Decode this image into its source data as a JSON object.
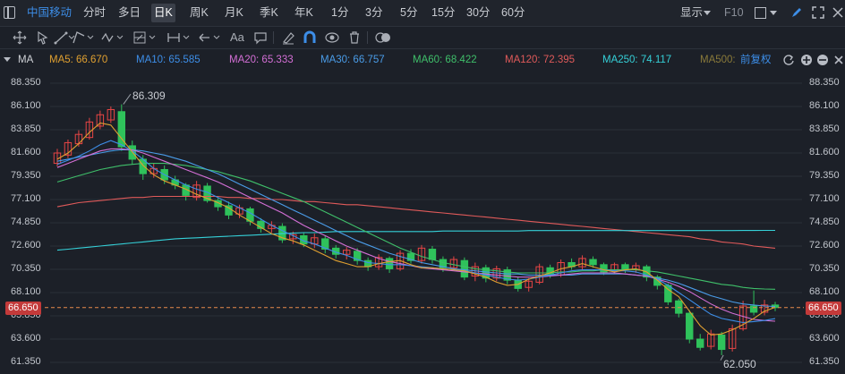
{
  "toolbar": {
    "stock_name": "中国移动",
    "periods": [
      "分时",
      "多日",
      "日K",
      "周K",
      "月K",
      "季K",
      "年K",
      "1分",
      "3分",
      "5分",
      "15分",
      "30分",
      "60分"
    ],
    "active_period": "日K",
    "display_label": "显示",
    "f10_label": "F10"
  },
  "drawing_tools": {
    "text_tool_label": "Aa"
  },
  "ma_row": {
    "indicator": "MA",
    "items": [
      {
        "label": "MA5: 66.670",
        "color": "#e0a030"
      },
      {
        "label": "MA10: 65.585",
        "color": "#3d8ee8"
      },
      {
        "label": "MA20: 65.333",
        "color": "#d46fd6"
      },
      {
        "label": "MA30: 66.757",
        "color": "#4a9ce8"
      },
      {
        "label": "MA60: 68.422",
        "color": "#3fbf6a"
      },
      {
        "label": "MA120: 72.395",
        "color": "#e05a5a"
      },
      {
        "label": "MA250: 74.117",
        "color": "#35d0d8"
      },
      {
        "label": "MA500:",
        "color": "#8a7a3a"
      }
    ],
    "adjust_label": "前复权"
  },
  "chart_data": {
    "type": "candlestick",
    "y_ticks": [
      "88.350",
      "86.100",
      "83.850",
      "81.600",
      "79.350",
      "77.100",
      "74.850",
      "72.600",
      "70.350",
      "68.100",
      "65.850",
      "63.600",
      "61.350"
    ],
    "ylim": [
      61.35,
      88.35
    ],
    "current_price": "66.650",
    "high_label": "86.309",
    "low_label": "62.050",
    "ma5": [
      81.0,
      81.6,
      82.5,
      83.6,
      84.5,
      84.3,
      83.0,
      81.7,
      80.4,
      79.5,
      78.9,
      78.5,
      78.1,
      77.6,
      77.2,
      76.8,
      76.3,
      75.6,
      75.0,
      74.4,
      73.8,
      73.4,
      73.1,
      72.7,
      72.2,
      71.7,
      71.2,
      70.9,
      70.6,
      70.6,
      70.9,
      71.1,
      71.2,
      70.8,
      70.5,
      70.5,
      70.4,
      70.3,
      70.2,
      69.9,
      69.6,
      69.1,
      68.8,
      68.9,
      69.4,
      69.7,
      70.0,
      70.4,
      70.6,
      70.9,
      70.6,
      70.3,
      70.1,
      70.3,
      70.4,
      70.1,
      69.3,
      68.4,
      67.7,
      66.3,
      64.9,
      64.0,
      64.1,
      64.5,
      65.0,
      65.6,
      66.3,
      66.67
    ],
    "ma10": [
      80.5,
      80.9,
      81.3,
      81.8,
      82.4,
      82.8,
      82.4,
      81.8,
      81.0,
      80.1,
      79.5,
      79.0,
      78.5,
      78.1,
      77.8,
      77.3,
      76.8,
      76.3,
      75.8,
      75.2,
      74.6,
      74.1,
      73.6,
      73.1,
      72.8,
      72.4,
      72.0,
      71.7,
      71.3,
      71.0,
      70.9,
      70.8,
      70.8,
      70.7,
      70.6,
      70.5,
      70.4,
      70.3,
      70.2,
      70.0,
      69.8,
      69.6,
      69.4,
      69.3,
      69.4,
      69.6,
      69.8,
      70.0,
      70.2,
      70.3,
      70.3,
      70.3,
      70.2,
      70.2,
      70.1,
      69.8,
      69.4,
      68.8,
      68.1,
      67.4,
      66.7,
      66.0,
      65.6,
      65.4,
      65.2,
      65.3,
      65.4,
      65.585
    ],
    "ma20": [
      80.2,
      80.6,
      81.0,
      81.4,
      81.8,
      82.0,
      82.0,
      81.9,
      81.6,
      81.2,
      80.8,
      80.4,
      80.0,
      79.6,
      79.2,
      78.8,
      78.3,
      77.8,
      77.3,
      76.8,
      76.3,
      75.8,
      75.2,
      74.6,
      74.1,
      73.6,
      73.1,
      72.6,
      72.2,
      71.8,
      71.4,
      71.1,
      70.9,
      70.7,
      70.5,
      70.4,
      70.3,
      70.2,
      70.1,
      70.0,
      69.9,
      69.8,
      69.7,
      69.6,
      69.6,
      69.6,
      69.7,
      69.8,
      69.9,
      70.0,
      70.0,
      70.0,
      70.0,
      69.9,
      69.8,
      69.7,
      69.4,
      69.1,
      68.7,
      68.2,
      67.6,
      67.0,
      66.5,
      66.1,
      65.8,
      65.5,
      65.4,
      65.333
    ],
    "ma30": [
      80.8,
      81.0,
      81.2,
      81.4,
      81.6,
      81.8,
      81.9,
      81.9,
      81.8,
      81.6,
      81.4,
      81.1,
      80.8,
      80.4,
      80.0,
      79.6,
      79.1,
      78.6,
      78.1,
      77.6,
      77.1,
      76.6,
      76.1,
      75.6,
      75.1,
      74.6,
      74.1,
      73.6,
      73.1,
      72.7,
      72.3,
      71.9,
      71.6,
      71.3,
      71.0,
      70.8,
      70.6,
      70.4,
      70.3,
      70.2,
      70.1,
      70.0,
      69.9,
      69.9,
      69.8,
      69.8,
      69.8,
      69.8,
      69.8,
      69.9,
      69.9,
      69.9,
      69.9,
      69.9,
      69.8,
      69.7,
      69.5,
      69.3,
      69.0,
      68.6,
      68.2,
      67.8,
      67.5,
      67.2,
      67.0,
      66.9,
      66.8,
      66.757
    ],
    "ma60": [
      78.8,
      79.1,
      79.4,
      79.7,
      80.0,
      80.2,
      80.4,
      80.5,
      80.6,
      80.6,
      80.6,
      80.5,
      80.4,
      80.2,
      80.0,
      79.8,
      79.5,
      79.2,
      78.9,
      78.5,
      78.1,
      77.7,
      77.3,
      76.9,
      76.4,
      75.9,
      75.4,
      74.9,
      74.4,
      73.9,
      73.4,
      72.9,
      72.4,
      72.0,
      71.6,
      71.3,
      71.0,
      70.8,
      70.6,
      70.4,
      70.3,
      70.2,
      70.1,
      70.0,
      70.0,
      70.0,
      70.0,
      70.1,
      70.1,
      70.2,
      70.2,
      70.3,
      70.3,
      70.3,
      70.3,
      70.2,
      70.1,
      69.9,
      69.7,
      69.5,
      69.3,
      69.1,
      68.9,
      68.8,
      68.6,
      68.5,
      68.45,
      68.422
    ],
    "ma120": [
      76.4,
      76.6,
      76.8,
      76.9,
      77.0,
      77.1,
      77.2,
      77.3,
      77.3,
      77.4,
      77.4,
      77.4,
      77.4,
      77.4,
      77.4,
      77.4,
      77.3,
      77.3,
      77.2,
      77.2,
      77.1,
      77.1,
      77.0,
      76.9,
      76.9,
      76.8,
      76.7,
      76.6,
      76.6,
      76.5,
      76.4,
      76.3,
      76.2,
      76.1,
      76.0,
      75.9,
      75.8,
      75.7,
      75.6,
      75.5,
      75.4,
      75.3,
      75.2,
      75.1,
      75.0,
      74.9,
      74.8,
      74.7,
      74.6,
      74.5,
      74.4,
      74.3,
      74.2,
      74.1,
      74.0,
      73.9,
      73.8,
      73.7,
      73.6,
      73.5,
      73.3,
      73.2,
      73.0,
      72.9,
      72.8,
      72.6,
      72.5,
      72.395
    ],
    "ma250": [
      72.2,
      72.3,
      72.4,
      72.5,
      72.6,
      72.7,
      72.8,
      72.9,
      73.0,
      73.1,
      73.2,
      73.3,
      73.35,
      73.4,
      73.45,
      73.5,
      73.55,
      73.6,
      73.65,
      73.7,
      73.75,
      73.8,
      73.85,
      73.9,
      73.9,
      73.95,
      74.0,
      74.0,
      74.0,
      74.0,
      74.0,
      74.0,
      74.0,
      74.0,
      74.0,
      74.0,
      74.05,
      74.05,
      74.05,
      74.05,
      74.05,
      74.05,
      74.05,
      74.05,
      74.1,
      74.1,
      74.1,
      74.1,
      74.1,
      74.1,
      74.1,
      74.1,
      74.1,
      74.1,
      74.1,
      74.1,
      74.1,
      74.1,
      74.1,
      74.1,
      74.1,
      74.1,
      74.1,
      74.1,
      74.11,
      74.11,
      74.115,
      74.117
    ],
    "candles": [
      [
        80.6,
        81.6,
        82.0,
        80.3
      ],
      [
        81.4,
        82.6,
        82.9,
        81.1
      ],
      [
        82.5,
        83.4,
        83.8,
        82.2
      ],
      [
        83.1,
        84.6,
        85.0,
        82.9
      ],
      [
        84.2,
        85.3,
        85.7,
        83.9
      ],
      [
        84.8,
        85.8,
        86.1,
        84.5
      ],
      [
        85.6,
        82.2,
        86.309,
        81.8
      ],
      [
        82.3,
        81.0,
        82.8,
        80.5
      ],
      [
        81.0,
        79.6,
        81.4,
        79.0
      ],
      [
        79.6,
        80.1,
        80.6,
        79.2
      ],
      [
        80.0,
        79.0,
        80.4,
        78.6
      ],
      [
        79.0,
        78.5,
        79.4,
        78.1
      ],
      [
        78.5,
        77.5,
        78.7,
        77.0
      ],
      [
        77.3,
        78.5,
        78.9,
        77.0
      ],
      [
        78.4,
        77.0,
        78.7,
        76.8
      ],
      [
        77.0,
        76.4,
        77.3,
        76.0
      ],
      [
        76.5,
        75.6,
        76.9,
        75.2
      ],
      [
        75.7,
        76.3,
        76.6,
        75.3
      ],
      [
        76.2,
        75.0,
        76.4,
        74.6
      ],
      [
        75.0,
        74.3,
        75.3,
        73.9
      ],
      [
        74.3,
        74.6,
        75.0,
        73.9
      ],
      [
        74.5,
        73.2,
        74.8,
        72.9
      ],
      [
        73.3,
        73.7,
        74.0,
        72.8
      ],
      [
        73.6,
        72.8,
        73.9,
        72.5
      ],
      [
        72.8,
        73.4,
        73.8,
        72.4
      ],
      [
        73.3,
        72.3,
        73.6,
        71.9
      ],
      [
        72.4,
        71.8,
        72.7,
        71.4
      ],
      [
        71.8,
        72.2,
        72.5,
        71.3
      ],
      [
        72.1,
        71.2,
        72.4,
        70.8
      ],
      [
        71.2,
        70.6,
        71.5,
        70.2
      ],
      [
        70.6,
        71.5,
        71.8,
        70.3
      ],
      [
        71.4,
        70.4,
        71.6,
        70.0
      ],
      [
        70.4,
        71.9,
        72.2,
        70.2
      ],
      [
        71.9,
        71.2,
        72.3,
        70.9
      ],
      [
        71.2,
        72.4,
        72.7,
        70.9
      ],
      [
        72.3,
        71.3,
        72.6,
        70.9
      ],
      [
        71.3,
        70.5,
        71.6,
        70.1
      ],
      [
        70.5,
        71.3,
        71.6,
        70.2
      ],
      [
        71.2,
        69.6,
        71.5,
        69.3
      ],
      [
        69.7,
        70.6,
        71.0,
        69.2
      ],
      [
        70.5,
        69.5,
        70.8,
        69.1
      ],
      [
        69.5,
        70.4,
        70.7,
        69.2
      ],
      [
        70.3,
        69.3,
        70.6,
        68.9
      ],
      [
        69.3,
        68.5,
        69.6,
        68.2
      ],
      [
        68.6,
        69.2,
        69.5,
        68.2
      ],
      [
        69.1,
        70.6,
        70.9,
        68.9
      ],
      [
        70.5,
        69.8,
        70.8,
        69.5
      ],
      [
        69.8,
        71.0,
        71.3,
        69.6
      ],
      [
        71.0,
        70.6,
        71.4,
        70.3
      ],
      [
        70.6,
        71.4,
        71.7,
        70.3
      ],
      [
        71.3,
        70.8,
        71.6,
        70.5
      ],
      [
        70.8,
        70.1,
        71.0,
        69.8
      ],
      [
        70.2,
        70.8,
        71.0,
        69.9
      ],
      [
        70.8,
        70.3,
        71.0,
        70.0
      ],
      [
        70.3,
        70.7,
        71.0,
        70.0
      ],
      [
        70.6,
        69.6,
        70.8,
        69.2
      ],
      [
        69.6,
        68.8,
        69.8,
        68.4
      ],
      [
        68.8,
        67.2,
        69.0,
        66.9
      ],
      [
        67.3,
        66.1,
        67.5,
        65.7
      ],
      [
        66.1,
        63.6,
        66.4,
        63.2
      ],
      [
        63.6,
        62.8,
        64.1,
        62.5
      ],
      [
        62.9,
        64.1,
        64.5,
        62.6
      ],
      [
        64.0,
        62.6,
        64.3,
        62.05
      ],
      [
        62.7,
        64.6,
        65.0,
        62.4
      ],
      [
        64.6,
        66.8,
        67.3,
        64.4
      ],
      [
        66.8,
        66.2,
        68.3,
        65.9
      ],
      [
        66.2,
        66.9,
        67.4,
        65.9
      ],
      [
        66.9,
        66.65,
        67.2,
        66.3
      ]
    ]
  }
}
